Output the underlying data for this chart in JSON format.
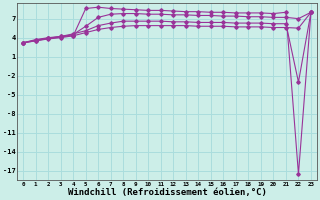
{
  "background_color": "#cceee8",
  "grid_color": "#aadddd",
  "line_color": "#993399",
  "xlabel": "Windchill (Refroidissement éolien,°C)",
  "xlabel_fontsize": 6.5,
  "ylabel_ticks": [
    7,
    4,
    1,
    -2,
    -5,
    -8,
    -11,
    -14,
    -17
  ],
  "xlim": [
    -0.5,
    23.5
  ],
  "ylim": [
    -18.5,
    9.5
  ],
  "xtick_labels": [
    "0",
    "1",
    "2",
    "3",
    "4",
    "5",
    "6",
    "7",
    "8",
    "9",
    "10",
    "11",
    "12",
    "13",
    "14",
    "15",
    "16",
    "17",
    "18",
    "19",
    "20",
    "21",
    "22",
    "23"
  ],
  "series": [
    [
      3.2,
      3.7,
      4.0,
      4.2,
      4.3,
      8.6,
      8.8,
      8.6,
      8.5,
      8.4,
      8.3,
      8.3,
      8.2,
      8.1,
      8.1,
      8.0,
      8.0,
      7.9,
      7.9,
      7.9,
      7.8,
      8.0,
      -17.5,
      8.0
    ],
    [
      3.2,
      3.6,
      3.9,
      4.1,
      4.5,
      5.8,
      7.2,
      7.7,
      7.8,
      7.8,
      7.7,
      7.7,
      7.6,
      7.6,
      7.5,
      7.5,
      7.4,
      7.4,
      7.3,
      7.3,
      7.2,
      7.2,
      7.0,
      8.0
    ],
    [
      3.2,
      3.5,
      3.9,
      4.2,
      4.6,
      5.1,
      5.9,
      6.3,
      6.6,
      6.6,
      6.6,
      6.6,
      6.5,
      6.5,
      6.4,
      6.4,
      6.4,
      6.3,
      6.3,
      6.3,
      6.2,
      6.2,
      -3.0,
      8.0
    ],
    [
      3.2,
      3.5,
      3.8,
      4.0,
      4.3,
      4.8,
      5.3,
      5.6,
      5.8,
      5.9,
      5.9,
      5.9,
      5.9,
      5.9,
      5.8,
      5.8,
      5.8,
      5.7,
      5.7,
      5.7,
      5.6,
      5.6,
      5.5,
      8.0
    ]
  ],
  "marker": "D",
  "marker_size": 1.8,
  "linewidth": 0.8
}
